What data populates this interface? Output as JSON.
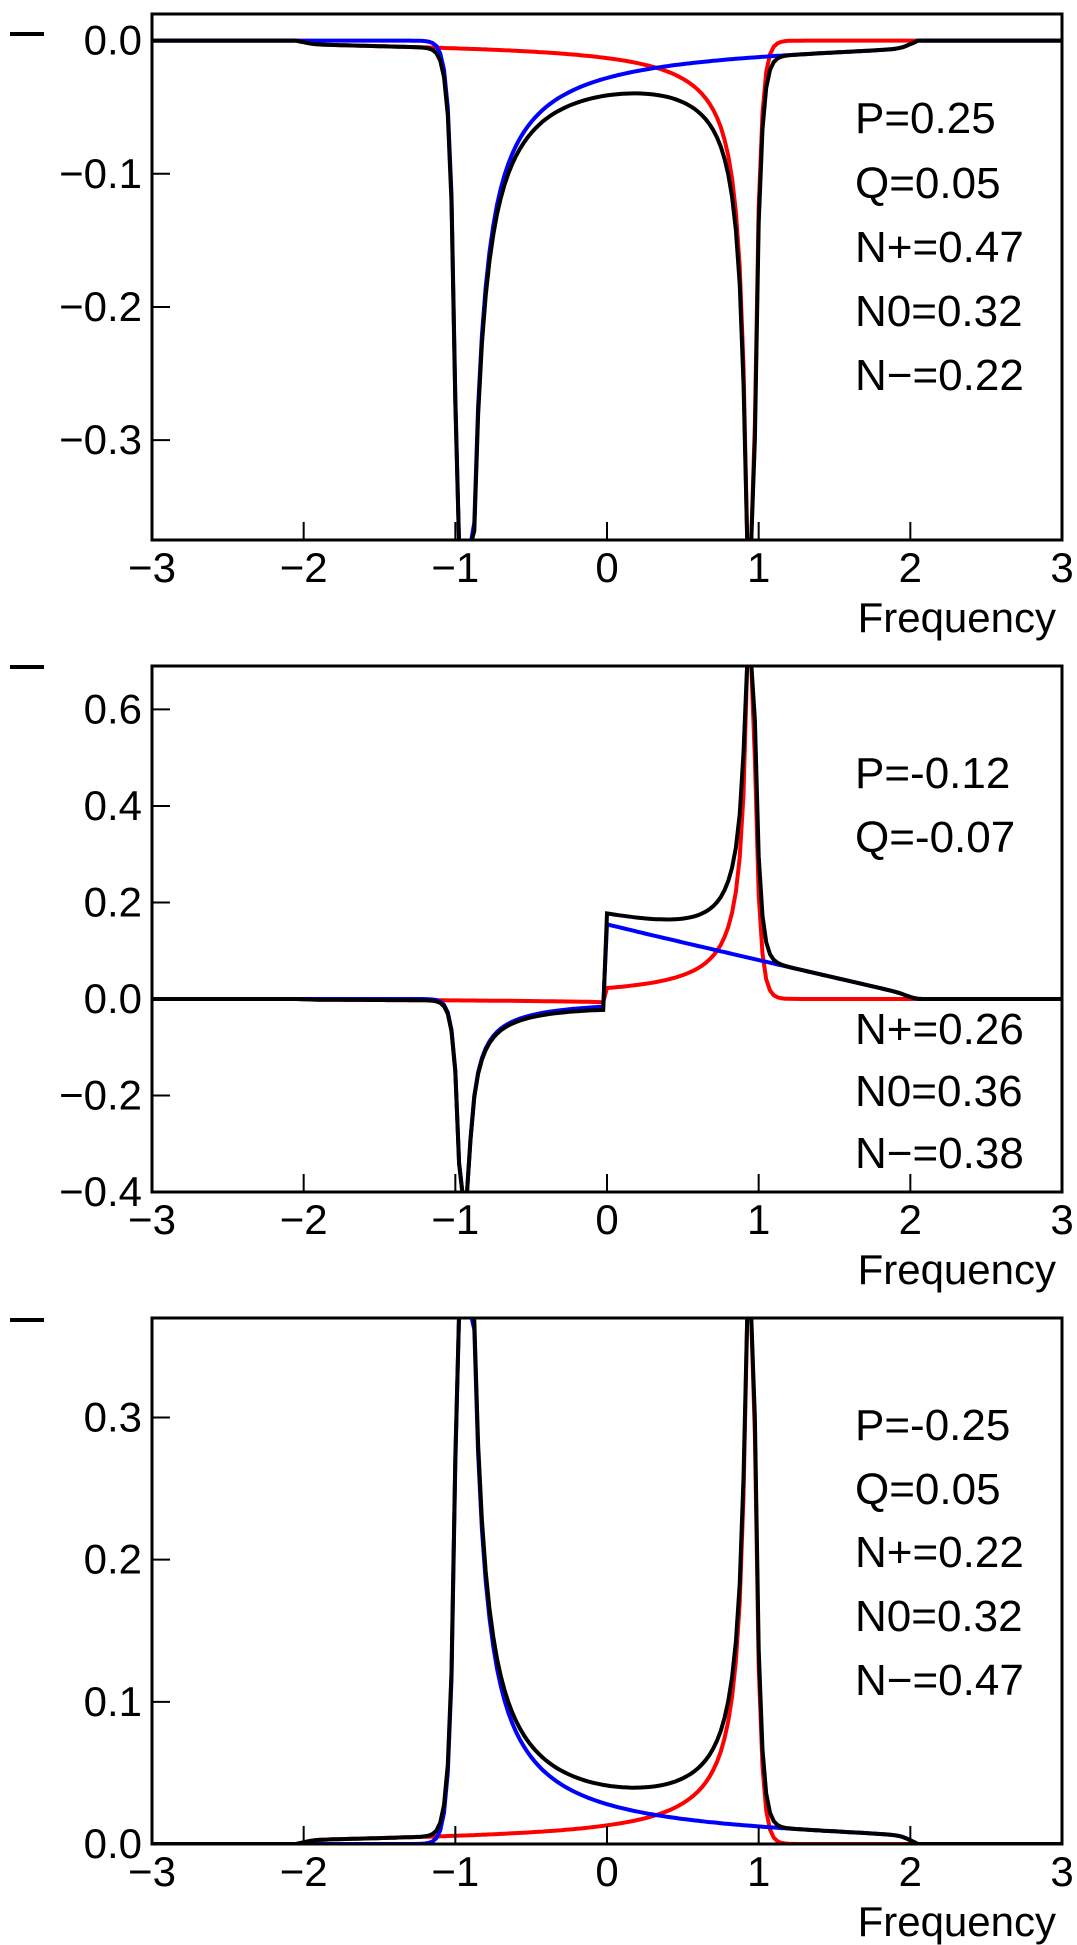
{
  "figure": {
    "colors": {
      "red": "#ff0000",
      "blue": "#0000ff",
      "black": "#000000"
    }
  },
  "chart_data": [
    {
      "type": "line",
      "xlabel": "Frequency",
      "xlim": [
        -3,
        3
      ],
      "ylim": [
        -0.375,
        0.02
      ],
      "x_ticks": [
        -3,
        -2,
        -1,
        0,
        1,
        2,
        3
      ],
      "x_tick_labels": [
        "−3",
        "−2",
        "−1",
        "0",
        "1",
        "2",
        "3"
      ],
      "y_ticks": [
        0.0,
        -0.1,
        -0.2,
        -0.3
      ],
      "y_tick_labels": [
        "0.0",
        "−0.1",
        "−0.2",
        "−0.3"
      ],
      "annotations": [
        "P=0.25",
        "Q=0.05",
        "N+=0.47",
        "N0=0.32",
        "N−=0.22"
      ],
      "series": [
        {
          "name": "red",
          "color": "#ff0000",
          "sign": -1,
          "kind": "upper",
          "A": 0.22,
          "B": 0.05,
          "asym": 0
        },
        {
          "name": "blue",
          "color": "#0000ff",
          "sign": -1,
          "kind": "lower",
          "A": 0.47,
          "B": 0.05,
          "asym": 0
        },
        {
          "name": "total",
          "color": "#000000",
          "sign": -1,
          "kind": "sum",
          "asym": 0
        }
      ]
    },
    {
      "type": "line",
      "xlabel": "Frequency",
      "xlim": [
        -3,
        3
      ],
      "ylim": [
        -0.4,
        0.69
      ],
      "x_ticks": [
        -3,
        -2,
        -1,
        0,
        1,
        2,
        3
      ],
      "x_tick_labels": [
        "−3",
        "−2",
        "−1",
        "0",
        "1",
        "2",
        "3"
      ],
      "y_ticks": [
        0.6,
        0.4,
        0.2,
        0.0,
        -0.2,
        -0.4
      ],
      "y_tick_labels": [
        "0.6",
        "0.4",
        "0.2",
        "0.0",
        "−0.2",
        "−0.4"
      ],
      "annotations": [
        "P=-0.12",
        "Q=-0.07",
        "N+=0.26",
        "N0=0.36",
        "N−=0.38"
      ],
      "series": [
        {
          "name": "red",
          "color": "#ff0000",
          "sign": 1,
          "kind": "upper",
          "A": 0.38,
          "B": 0.05,
          "asym": 1
        },
        {
          "name": "blue",
          "color": "#0000ff",
          "sign": 1,
          "kind": "lower",
          "A": 0.26,
          "B": 0.05,
          "asym": 1
        },
        {
          "name": "total",
          "color": "#000000",
          "sign": 1,
          "kind": "sum",
          "asym": 1
        }
      ]
    },
    {
      "type": "line",
      "xlabel": "Frequency",
      "xlim": [
        -3,
        3
      ],
      "ylim": [
        0.0,
        0.37
      ],
      "x_ticks": [
        -3,
        -2,
        -1,
        0,
        1,
        2,
        3
      ],
      "x_tick_labels": [
        "−3",
        "−2",
        "−1",
        "0",
        "1",
        "2",
        "3"
      ],
      "y_ticks": [
        0.0,
        0.1,
        0.2,
        0.3
      ],
      "y_tick_labels": [
        "0.0",
        "0.1",
        "0.2",
        "0.3"
      ],
      "annotations": [
        "P=-0.25",
        "Q=0.05",
        "N+=0.22",
        "N0=0.32",
        "N−=0.47"
      ],
      "series": [
        {
          "name": "red",
          "color": "#ff0000",
          "sign": 1,
          "kind": "upper",
          "A": 0.22,
          "B": 0.05,
          "asym": 0
        },
        {
          "name": "blue",
          "color": "#0000ff",
          "sign": 1,
          "kind": "lower",
          "A": 0.47,
          "B": 0.05,
          "asym": 0
        },
        {
          "name": "total",
          "color": "#000000",
          "sign": 1,
          "kind": "sum",
          "asym": 0
        }
      ]
    }
  ]
}
